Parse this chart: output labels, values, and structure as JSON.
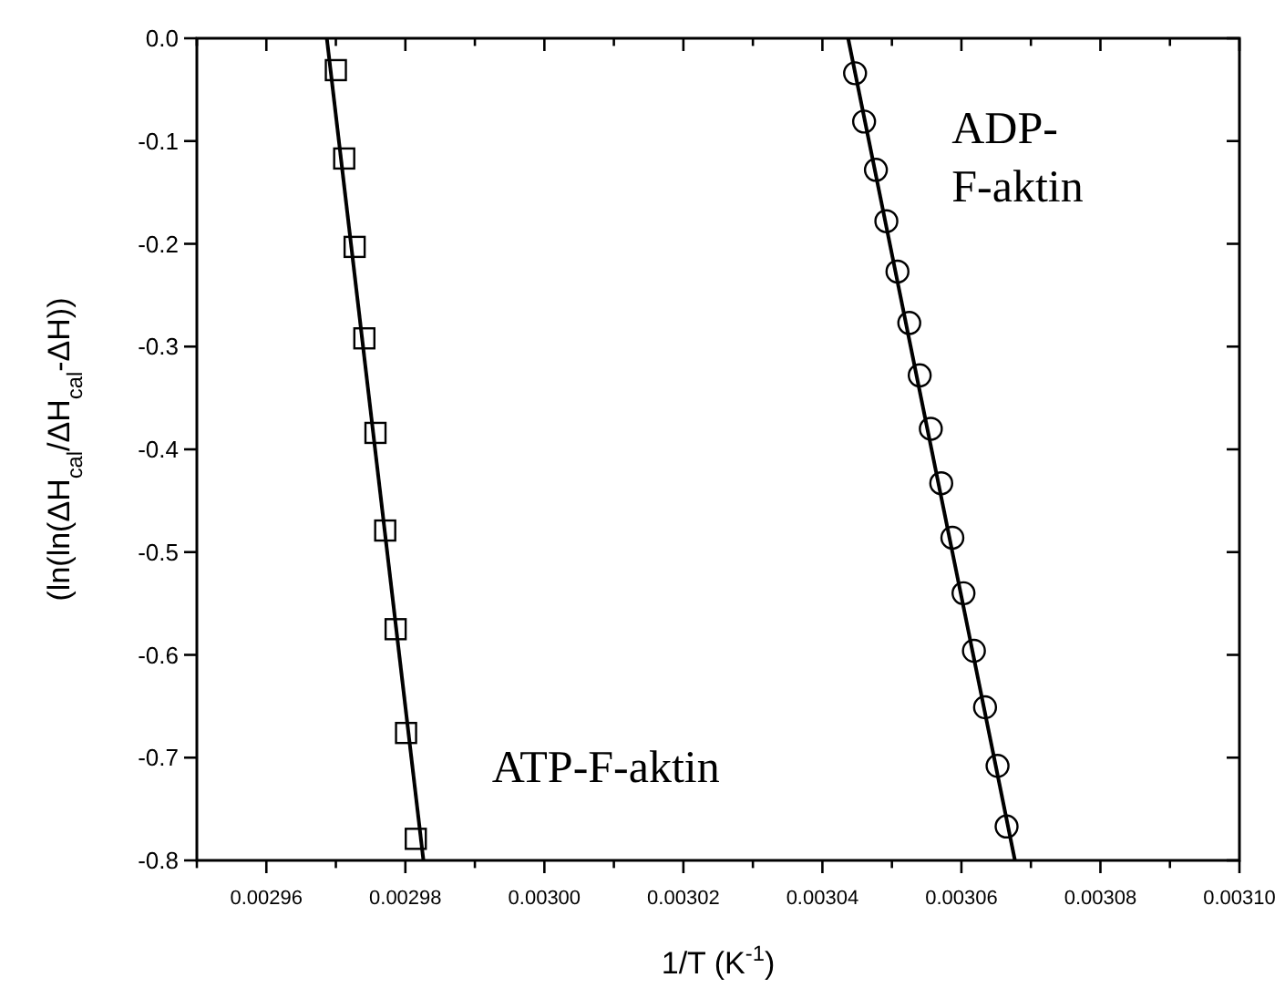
{
  "chart_data": {
    "type": "scatter",
    "xlabel": "1/T (K$^{-1}$)",
    "ylabel": "(ln(ln(ΔH$_{cal}$/ΔH$_{cal}$-ΔH))",
    "xlim": [
      0.00295,
      0.0031
    ],
    "ylim": [
      -0.8,
      0.0
    ],
    "xticks": [
      {
        "value": 0.00295,
        "label": null
      },
      {
        "value": 0.00296,
        "label": "0.00296"
      },
      {
        "value": 0.00297,
        "label": null
      },
      {
        "value": 0.00298,
        "label": "0.00298"
      },
      {
        "value": 0.00299,
        "label": null
      },
      {
        "value": 0.003,
        "label": "0.00300"
      },
      {
        "value": 0.00301,
        "label": null
      },
      {
        "value": 0.00302,
        "label": "0.00302"
      },
      {
        "value": 0.00303,
        "label": null
      },
      {
        "value": 0.00304,
        "label": "0.00304"
      },
      {
        "value": 0.00305,
        "label": null
      },
      {
        "value": 0.00306,
        "label": "0.00306"
      },
      {
        "value": 0.00307,
        "label": null
      },
      {
        "value": 0.00308,
        "label": "0.00308"
      },
      {
        "value": 0.00309,
        "label": null
      },
      {
        "value": 0.0031,
        "label": "0.00310"
      }
    ],
    "yticks": [
      {
        "value": 0,
        "label": "0.0"
      },
      -0.1,
      -0.2,
      -0.3,
      -0.4,
      -0.5,
      -0.6,
      -0.7,
      -0.8
    ],
    "grid": false,
    "series": [
      {
        "marker": "square",
        "color": "#000000",
        "x": [
          0.00297,
          0.0029712,
          0.0029727,
          0.0029741,
          0.0029757,
          0.0029771,
          0.0029786,
          0.0029801,
          0.0029815
        ],
        "values": [
          -0.031,
          -0.117,
          -0.203,
          -0.292,
          -0.384,
          -0.479,
          -0.575,
          -0.676,
          -0.779
        ]
      },
      {
        "type": "line",
        "marker": "none",
        "line_style": "solid",
        "color": "#000000",
        "x": [
          0.0029687,
          0.0029826
        ],
        "values": [
          0.0,
          -0.8
        ]
      },
      {
        "marker": "circle",
        "color": "#000000",
        "x": [
          0.0030447,
          0.003046,
          0.0030477,
          0.0030492,
          0.0030508,
          0.0030525,
          0.003054,
          0.0030556,
          0.0030571,
          0.0030587,
          0.0030603,
          0.0030618,
          0.0030634,
          0.0030652,
          0.0030665
        ],
        "values": [
          -0.034,
          -0.081,
          -0.128,
          -0.178,
          -0.227,
          -0.277,
          -0.328,
          -0.38,
          -0.433,
          -0.486,
          -0.54,
          -0.596,
          -0.651,
          -0.708,
          -0.767
        ]
      },
      {
        "type": "line",
        "marker": "none",
        "line_style": "solid",
        "color": "#000000",
        "x": [
          0.0030437,
          0.0030677
        ],
        "values": [
          0.0,
          -0.8
        ]
      }
    ],
    "annotations": [
      "ATP-F-aktin",
      "ADP-\nF-aktin"
    ]
  }
}
